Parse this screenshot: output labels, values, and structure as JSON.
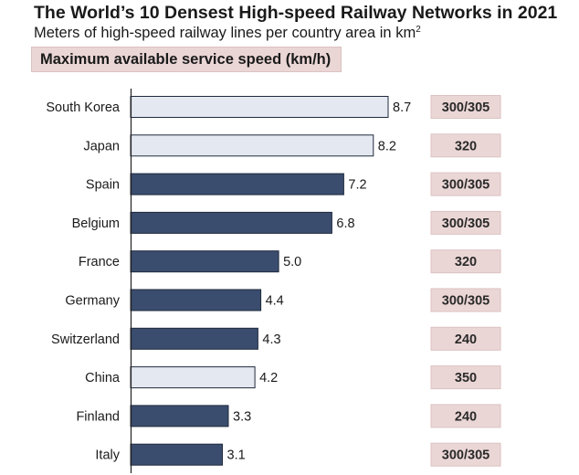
{
  "header": {
    "title": "The World’s 10 Densest High-speed Railway Networks in 2021",
    "subtitle": "Meters of high-speed railway lines per country area in km",
    "subtitle_superscript": "2",
    "speed_banner": "Maximum available service speed (km/h)"
  },
  "colors": {
    "dark_bar": "#3b4d6e",
    "light_bar": "#e4e9f1",
    "bar_outline": "#1f2a3d",
    "speed_box": "#ebd6d6",
    "speed_box_border": "#dcc2c2",
    "axis": "#222222"
  },
  "chart_data": {
    "type": "bar",
    "orientation": "horizontal",
    "title": "The World’s 10 Densest High-speed Railway Networks in 2021",
    "subtitle": "Meters of high-speed railway lines per country area in km²",
    "categories": [
      "South Korea",
      "Japan",
      "Spain",
      "Belgium",
      "France",
      "Germany",
      "Switzerland",
      "China",
      "Finland",
      "Italy"
    ],
    "values": [
      8.7,
      8.2,
      7.2,
      6.8,
      5.0,
      4.4,
      4.3,
      4.2,
      3.3,
      3.1
    ],
    "value_labels": [
      "8.7",
      "8.2",
      "7.2",
      "6.8",
      "5.0",
      "4.4",
      "4.3",
      "4.2",
      "3.3",
      "3.1"
    ],
    "bar_style": [
      "light",
      "light",
      "dark",
      "dark",
      "dark",
      "dark",
      "dark",
      "light",
      "dark",
      "dark"
    ],
    "max_speed_kmh": [
      "300/305",
      "320",
      "300/305",
      "300/305",
      "320",
      "300/305",
      "240",
      "350",
      "240",
      "300/305"
    ],
    "xlim": [
      0,
      8.7
    ],
    "grid": false,
    "legend": "none"
  }
}
